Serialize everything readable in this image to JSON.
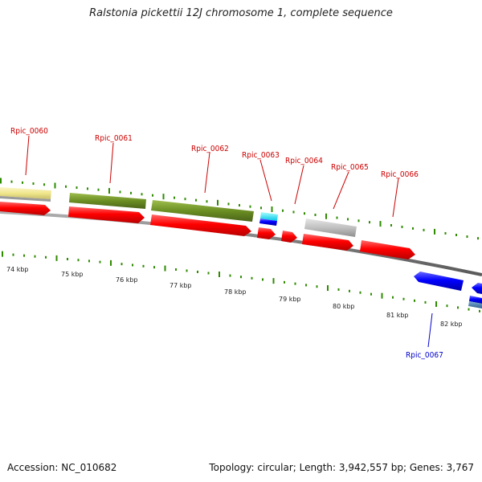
{
  "title": "Ralstonia pickettii 12J chromosome 1, complete sequence",
  "footer": {
    "accession": "Accession: NC_010682",
    "summary": "Topology: circular; Length: 3,942,557 bp; Genes: 3,767"
  },
  "scale_labels": [
    "74 kbp",
    "75 kbp",
    "76 kbp",
    "77 kbp",
    "78 kbp",
    "79 kbp",
    "80 kbp",
    "81 kbp",
    "82 kbp"
  ],
  "gene_labels": [
    {
      "name": "Rpic_0060",
      "color": "#cc0000"
    },
    {
      "name": "Rpic_0061",
      "color": "#cc0000"
    },
    {
      "name": "Rpic_0062",
      "color": "#cc0000"
    },
    {
      "name": "Rpic_0063",
      "color": "#cc0000"
    },
    {
      "name": "Rpic_0064",
      "color": "#cc0000"
    },
    {
      "name": "Rpic_0065",
      "color": "#cc0000"
    },
    {
      "name": "Rpic_0066",
      "color": "#cc0000"
    },
    {
      "name": "Rpic_0067",
      "color": "#0000cc"
    }
  ],
  "colors": {
    "cds_forward": "#ff0000",
    "cds_reverse": "#0000ff",
    "gene_olive": "#6b8e23",
    "gene_khaki": "#f0e68c",
    "gene_grey": "#c0c0c0",
    "gene_cyan": "#00ffff",
    "gene_steel": "#4682b4",
    "backbone": "#808080",
    "ticks": "#2e8b00"
  }
}
